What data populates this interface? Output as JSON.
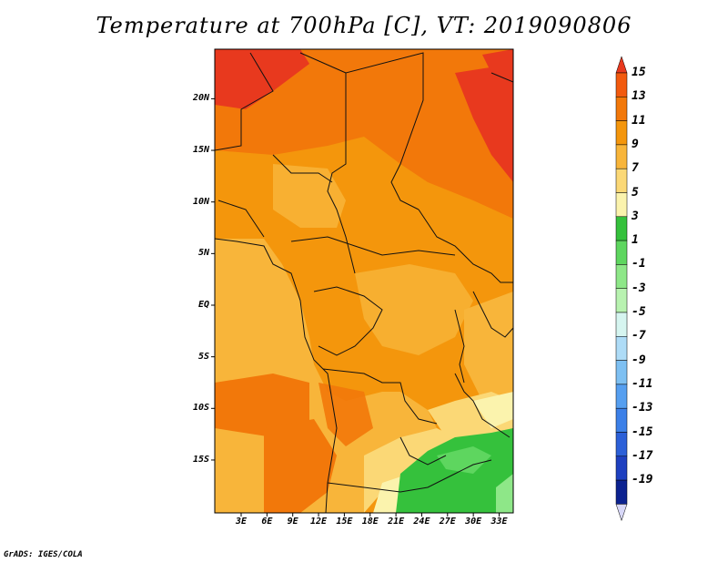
{
  "title": "Temperature at 700hPa [C], VT: 2019090806",
  "lat_labels": [
    {
      "text": "20N",
      "lat": 20
    },
    {
      "text": "15N",
      "lat": 15
    },
    {
      "text": "10N",
      "lat": 10
    },
    {
      "text": "5N",
      "lat": 5
    },
    {
      "text": "EQ",
      "lat": 0
    },
    {
      "text": "5S",
      "lat": -5
    },
    {
      "text": "10S",
      "lat": -10
    },
    {
      "text": "15S",
      "lat": -15
    }
  ],
  "lon_labels": [
    {
      "text": "3E",
      "lon": 3
    },
    {
      "text": "6E",
      "lon": 6
    },
    {
      "text": "9E",
      "lon": 9
    },
    {
      "text": "12E",
      "lon": 12
    },
    {
      "text": "15E",
      "lon": 15
    },
    {
      "text": "18E",
      "lon": 18
    },
    {
      "text": "21E",
      "lon": 21
    },
    {
      "text": "24E",
      "lon": 24
    },
    {
      "text": "27E",
      "lon": 27
    },
    {
      "text": "30E",
      "lon": 30
    },
    {
      "text": "33E",
      "lon": 33
    }
  ],
  "colorbar": {
    "labels": [
      "15",
      "13",
      "11",
      "9",
      "7",
      "5",
      "3",
      "1",
      "-1",
      "-3",
      "-5",
      "-7",
      "-9",
      "-11",
      "-13",
      "-15",
      "-17",
      "-19"
    ],
    "colors": [
      "#e8391e",
      "#f25a0e",
      "#f2780a",
      "#f4960c",
      "#f8b53a",
      "#fbd876",
      "#fbf3ad",
      "#35c13c",
      "#5ed65f",
      "#8ee788",
      "#b8f2b0",
      "#d6f5f0",
      "#aedcf7",
      "#7ec0f2",
      "#569ff0",
      "#3c80e8",
      "#2c60d8",
      "#1e40c0",
      "#0c2290",
      "#d8d8f8"
    ]
  },
  "credit": "GrADS: IGES/COLA"
}
